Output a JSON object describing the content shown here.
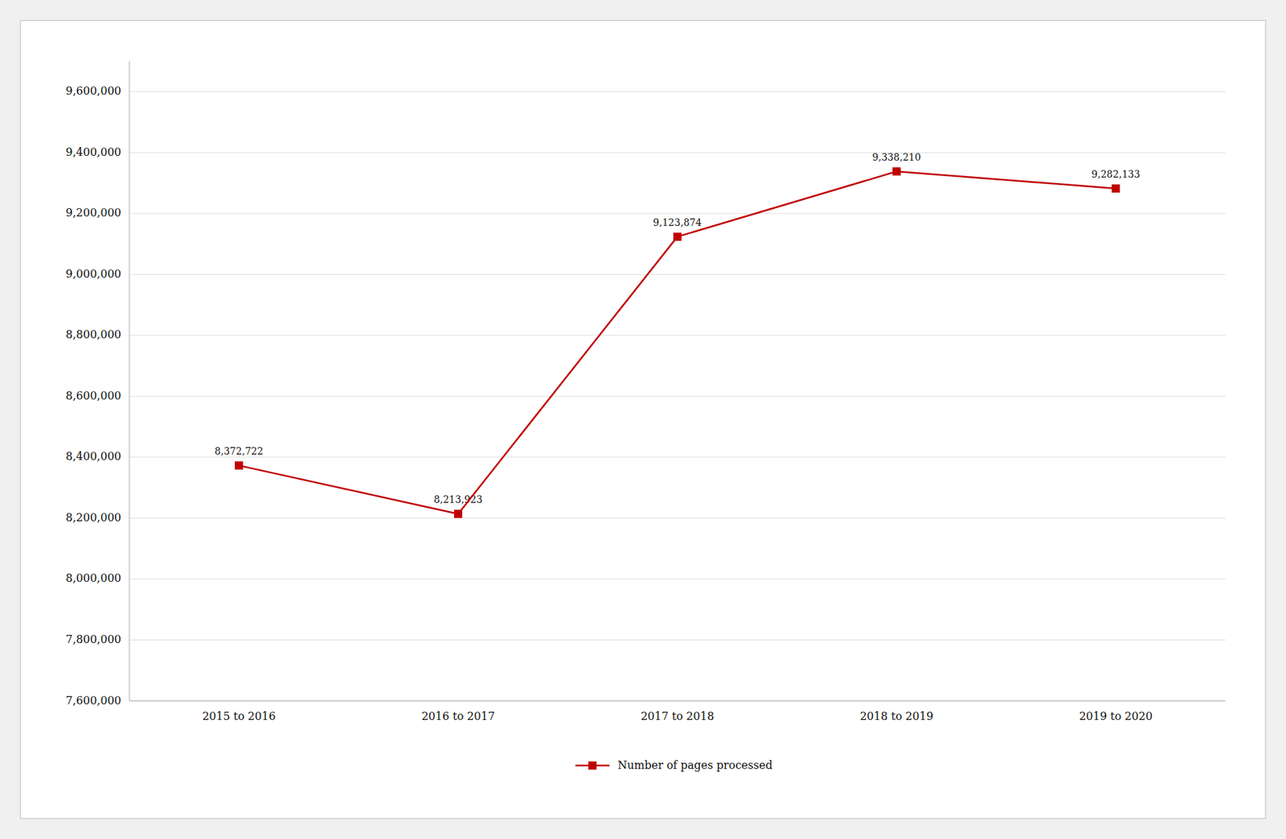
{
  "chart_data": {
    "type": "line",
    "categories": [
      "2015 to 2016",
      "2016 to 2017",
      "2017 to 2018",
      "2018 to 2019",
      "2019 to 2020"
    ],
    "series": [
      {
        "name": "Number of pages processed",
        "color": "#c00000",
        "marker": "square",
        "values": [
          8372722,
          8213923,
          9123874,
          9338210,
          9282133
        ],
        "value_labels": [
          "8,372,722",
          "8,213,923",
          "9,123,874",
          "9,338,210",
          "9,282,133"
        ]
      }
    ],
    "ylim": [
      7600000,
      9700000
    ],
    "yticks": [
      {
        "value": 7600000,
        "label": "7,600,000"
      },
      {
        "value": 7800000,
        "label": "7,800,000"
      },
      {
        "value": 8000000,
        "label": "8,000,000"
      },
      {
        "value": 8200000,
        "label": "8,200,000"
      },
      {
        "value": 8400000,
        "label": "8,400,000"
      },
      {
        "value": 8600000,
        "label": "8,600,000"
      },
      {
        "value": 8800000,
        "label": "8,800,000"
      },
      {
        "value": 9000000,
        "label": "9,000,000"
      },
      {
        "value": 9200000,
        "label": "9,200,000"
      },
      {
        "value": 9400000,
        "label": "9,400,000"
      },
      {
        "value": 9600000,
        "label": "9,600,000"
      }
    ],
    "grid": true,
    "data_labels": true,
    "legend": "bottom"
  }
}
